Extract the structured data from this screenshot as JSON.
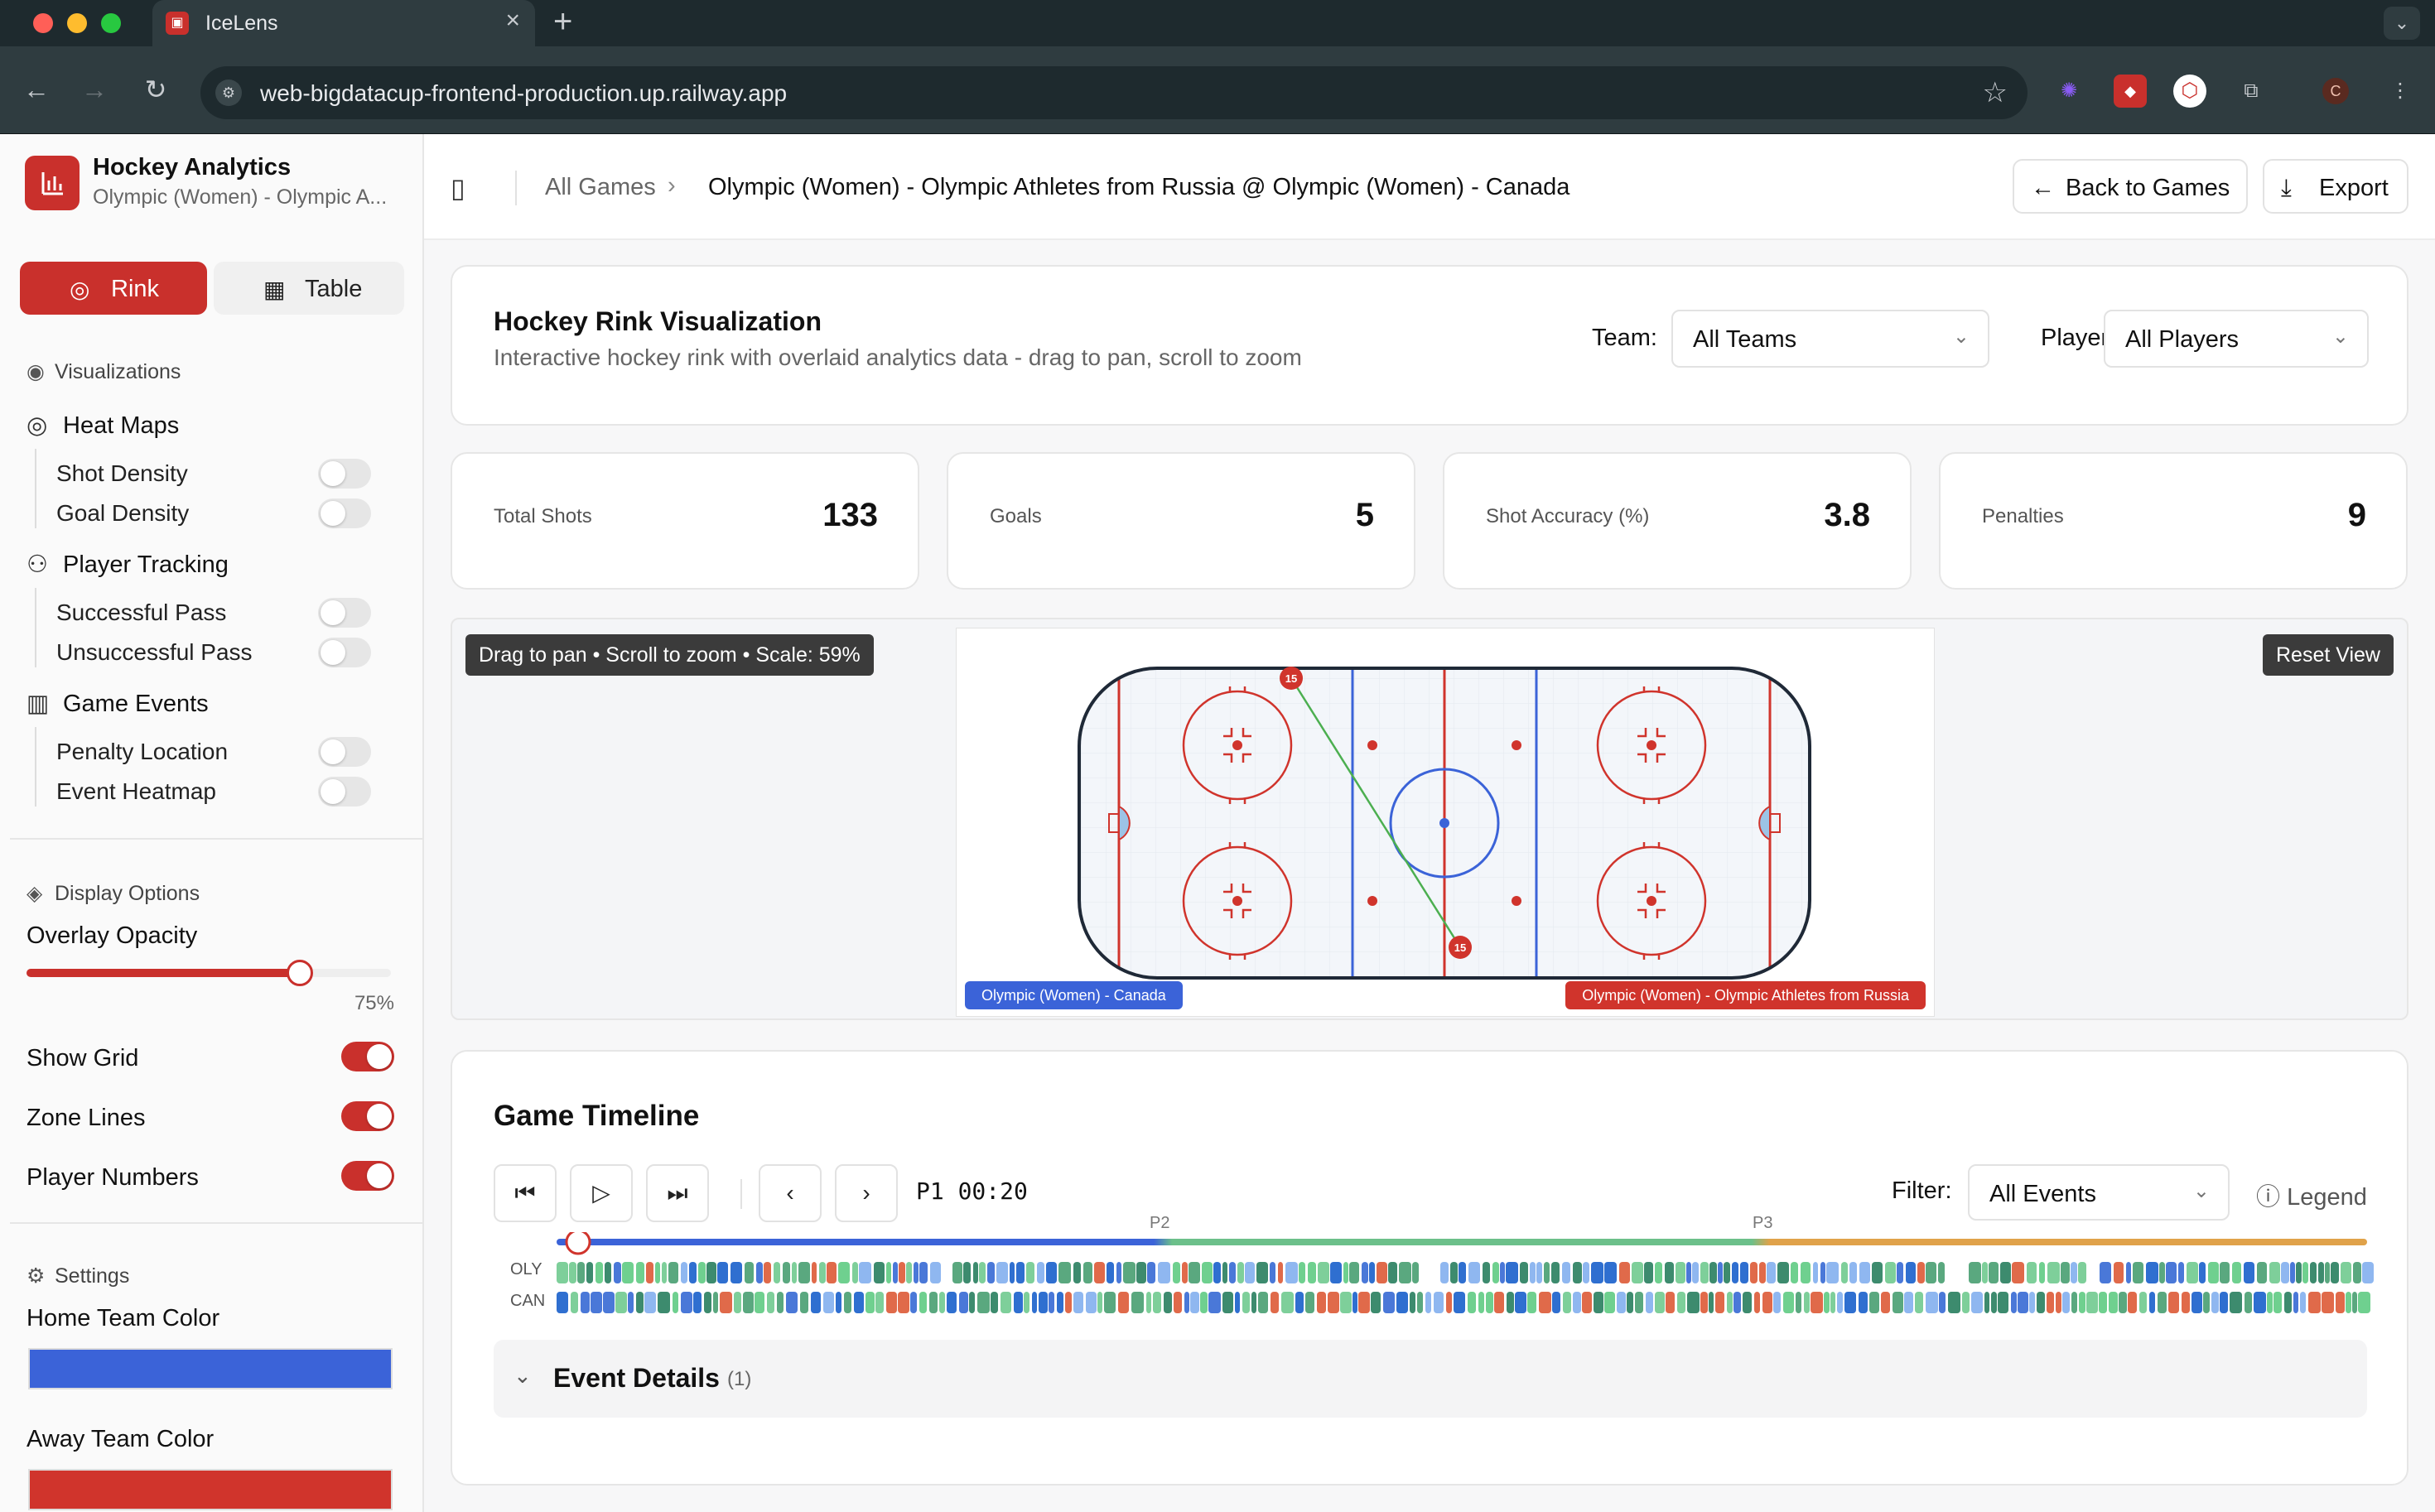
{
  "browser": {
    "tab_title": "IceLens",
    "url": "web-bigdatacup-frontend-production.up.railway.app",
    "profile_initial": "C"
  },
  "sidebar": {
    "app_title": "Hockey Analytics",
    "app_subtitle": "Olympic (Women) - Olympic A...",
    "view_rink": "Rink",
    "view_table": "Table",
    "visualizations_heading": "Visualizations",
    "categories": [
      {
        "label": "Heat Maps",
        "icon": "target-icon",
        "options": [
          {
            "label": "Shot Density",
            "on": false
          },
          {
            "label": "Goal Density",
            "on": false
          }
        ]
      },
      {
        "label": "Player Tracking",
        "icon": "users-icon",
        "options": [
          {
            "label": "Successful Pass",
            "on": false
          },
          {
            "label": "Unsuccessful Pass",
            "on": false
          }
        ]
      },
      {
        "label": "Game Events",
        "icon": "bar-chart-icon",
        "options": [
          {
            "label": "Penalty Location",
            "on": false
          },
          {
            "label": "Event Heatmap",
            "on": false
          }
        ]
      }
    ],
    "display_heading": "Display Options",
    "overlay_label": "Overlay Opacity",
    "overlay_value": "75%",
    "overlay_fraction": 0.75,
    "toggles": [
      {
        "label": "Show Grid",
        "on": true
      },
      {
        "label": "Zone Lines",
        "on": true
      },
      {
        "label": "Player Numbers",
        "on": true
      }
    ],
    "settings_heading": "Settings",
    "home_color_label": "Home Team Color",
    "home_color": "#3b63d8",
    "away_color_label": "Away Team Color",
    "away_color": "#d0342c"
  },
  "header": {
    "breadcrumb_root": "All Games",
    "breadcrumb_current": "Olympic (Women) - Olympic Athletes from Russia @ Olympic (Women) - Canada",
    "back_label": "Back to Games",
    "export_label": "Export"
  },
  "viz": {
    "title": "Hockey Rink Visualization",
    "subtitle": "Interactive hockey rink with overlaid analytics data - drag to pan, scroll to zoom",
    "team_label": "Team:",
    "team_value": "All Teams",
    "player_label": "Player:",
    "player_value": "All Players"
  },
  "stats": [
    {
      "label": "Total Shots",
      "value": "133"
    },
    {
      "label": "Goals",
      "value": "5"
    },
    {
      "label": "Shot Accuracy (%)",
      "value": "3.8"
    },
    {
      "label": "Penalties",
      "value": "9"
    }
  ],
  "rink": {
    "hint": "Drag to pan • Scroll to zoom • Scale: 59%",
    "reset_label": "Reset View",
    "home_team": "Olympic (Women) - Canada",
    "away_team": "Olympic (Women) - Olympic Athletes from Russia",
    "markers": [
      "15",
      "15"
    ],
    "accent_red": "#d0342c",
    "accent_blue": "#3b63d8"
  },
  "timeline": {
    "title": "Game Timeline",
    "clock": "P1 00:20",
    "filter_label": "Filter:",
    "filter_value": "All Events",
    "legend_label": "Legend",
    "periods": [
      "P2",
      "P3"
    ],
    "row_labels": [
      "OLY",
      "CAN"
    ],
    "details_label": "Event Details",
    "details_count": "(1)"
  }
}
